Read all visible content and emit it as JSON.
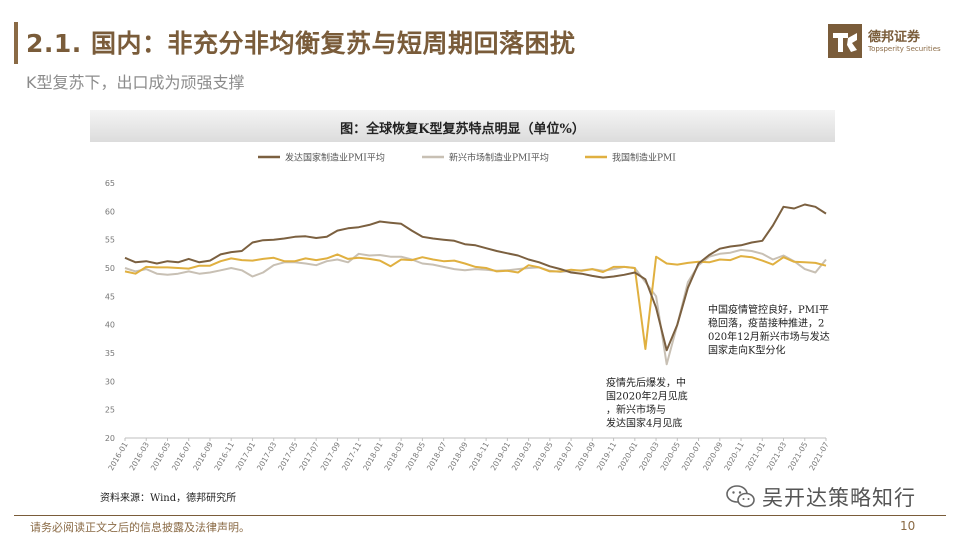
{
  "header": {
    "title": "2.1. 国内：非充分非均衡复苏与短周期回落困扰",
    "subtitle": "K型复苏下，出口成为顽强支撑"
  },
  "logo": {
    "name_cn": "德邦证券",
    "name_en": "Topsperity Securities"
  },
  "footer": {
    "source": "资料来源：Wind，德邦研究所",
    "disclaimer": "请务必阅读正文之后的信息披露及法律声明。",
    "page_number": "10",
    "watermark": "吴开达策略知行"
  },
  "colors": {
    "brand": "#7a5c3a",
    "developed": "#7b6040",
    "emerging": "#c8c0b4",
    "china": "#e0b040"
  },
  "chart_data": {
    "type": "line",
    "title": "图：全球恢复K型复苏特点明显（单位%）",
    "ylim": [
      20,
      65
    ],
    "yticks": [
      20,
      25,
      30,
      35,
      40,
      45,
      50,
      55,
      60,
      65
    ],
    "x": [
      "2016-01",
      "2016-02",
      "2016-03",
      "2016-04",
      "2016-05",
      "2016-06",
      "2016-07",
      "2016-08",
      "2016-09",
      "2016-10",
      "2016-11",
      "2016-12",
      "2017-01",
      "2017-02",
      "2017-03",
      "2017-04",
      "2017-05",
      "2017-06",
      "2017-07",
      "2017-08",
      "2017-09",
      "2017-10",
      "2017-11",
      "2017-12",
      "2018-01",
      "2018-02",
      "2018-03",
      "2018-04",
      "2018-05",
      "2018-06",
      "2018-07",
      "2018-08",
      "2018-09",
      "2018-10",
      "2018-11",
      "2018-12",
      "2019-01",
      "2019-02",
      "2019-03",
      "2019-04",
      "2019-05",
      "2019-06",
      "2019-07",
      "2019-08",
      "2019-09",
      "2019-10",
      "2019-11",
      "2019-12",
      "2020-01",
      "2020-02",
      "2020-03",
      "2020-04",
      "2020-05",
      "2020-06",
      "2020-07",
      "2020-08",
      "2020-09",
      "2020-10",
      "2020-11",
      "2020-12",
      "2021-01",
      "2021-02",
      "2021-03",
      "2021-04",
      "2021-05",
      "2021-06",
      "2021-07"
    ],
    "xtick_labels": [
      "2016-01",
      "2016-03",
      "2016-05",
      "2016-07",
      "2016-09",
      "2016-11",
      "2017-01",
      "2017-03",
      "2017-05",
      "2017-07",
      "2017-09",
      "2017-11",
      "2018-01",
      "2018-03",
      "2018-05",
      "2018-07",
      "2018-09",
      "2018-11",
      "2019-01",
      "2019-03",
      "2019-05",
      "2019-07",
      "2019-09",
      "2019-11",
      "2020-01",
      "2020-03",
      "2020-05",
      "2020-07",
      "2020-09",
      "2020-11",
      "2021-01",
      "2021-03",
      "2021-05",
      "2021-07"
    ],
    "series": [
      {
        "name": "发达国家制造业PMI平均",
        "color": "#7b6040",
        "values": [
          51.8,
          51.0,
          51.2,
          50.8,
          51.2,
          51.0,
          51.6,
          51.0,
          51.3,
          52.4,
          52.8,
          53.0,
          54.5,
          54.9,
          55.0,
          55.2,
          55.5,
          55.6,
          55.3,
          55.5,
          56.6,
          57.0,
          57.2,
          57.6,
          58.2,
          58.0,
          57.8,
          56.6,
          55.5,
          55.2,
          55.0,
          54.8,
          54.2,
          54.0,
          53.5,
          53.0,
          52.6,
          52.2,
          51.5,
          51.0,
          50.3,
          49.8,
          49.2,
          49.0,
          48.6,
          48.3,
          48.5,
          48.8,
          49.2,
          48.0,
          43.0,
          35.5,
          40.0,
          46.5,
          50.8,
          52.3,
          53.4,
          53.8,
          54.0,
          54.5,
          54.8,
          57.5,
          60.8,
          60.5,
          61.2,
          60.8,
          59.6
        ]
      },
      {
        "name": "新兴市场制造业PMI平均",
        "color": "#c8c0b4",
        "values": [
          50.0,
          49.4,
          49.8,
          49.0,
          48.8,
          49.0,
          49.4,
          49.0,
          49.2,
          49.6,
          50.0,
          49.6,
          48.5,
          49.2,
          50.5,
          51.0,
          51.0,
          50.8,
          50.5,
          51.2,
          51.5,
          51.0,
          52.5,
          52.2,
          52.3,
          52.0,
          52.0,
          51.5,
          50.8,
          50.6,
          50.2,
          49.8,
          49.6,
          49.8,
          49.7,
          49.5,
          49.6,
          49.8,
          50.0,
          50.1,
          49.5,
          49.3,
          49.5,
          49.6,
          49.8,
          49.5,
          49.8,
          50.2,
          50.0,
          47.5,
          45.0,
          33.0,
          40.0,
          47.5,
          50.5,
          52.0,
          52.5,
          52.7,
          53.2,
          53.0,
          52.5,
          51.5,
          52.2,
          51.2,
          49.8,
          49.2,
          51.5
        ]
      },
      {
        "name": "我国制造业PMI",
        "color": "#e0b040",
        "values": [
          49.4,
          49.0,
          50.2,
          50.1,
          50.1,
          50.0,
          49.9,
          50.4,
          50.4,
          51.2,
          51.7,
          51.4,
          51.3,
          51.6,
          51.8,
          51.2,
          51.2,
          51.7,
          51.4,
          51.7,
          52.4,
          51.6,
          51.8,
          51.6,
          51.3,
          50.3,
          51.5,
          51.4,
          51.9,
          51.5,
          51.2,
          51.3,
          50.8,
          50.2,
          50.0,
          49.4,
          49.5,
          49.2,
          50.5,
          50.1,
          49.4,
          49.4,
          49.7,
          49.5,
          49.8,
          49.3,
          50.2,
          50.2,
          50.0,
          35.7,
          52.0,
          50.8,
          50.6,
          50.9,
          51.1,
          51.0,
          51.5,
          51.4,
          52.1,
          51.9,
          51.3,
          50.6,
          51.9,
          51.1,
          51.0,
          50.9,
          50.4
        ]
      }
    ],
    "annotations": [
      {
        "text": "疫情先后爆发，中国2020年2月见底，新兴市场与发达国家4月见底"
      },
      {
        "text": "中国疫情管控良好，PMI平稳回落，疫苗接种推进，2020年12月新兴市场与发达国家走向K型分化"
      }
    ]
  }
}
